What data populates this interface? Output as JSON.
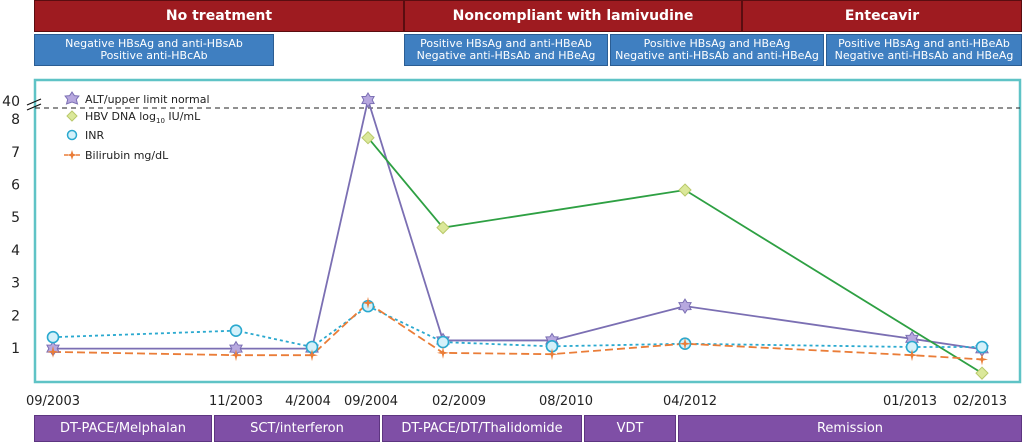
{
  "phases": [
    {
      "label": "No treatment"
    },
    {
      "label": "Noncompliant with lamivudine"
    },
    {
      "label": "Entecavir"
    }
  ],
  "serology": [
    {
      "line1": "Negative HBsAg and anti-HBsAb",
      "line2": "Positive anti-HBcAb"
    },
    {
      "line1": "Positive HBsAg and anti-HBeAb",
      "line2": "Negative anti-HBsAb and HBeAg"
    },
    {
      "line1": "Positive HBsAg and HBeAg",
      "line2": "Negative anti-HBsAb and anti-HBeAg"
    },
    {
      "line1": "Positive HBsAg and anti-HBeAb",
      "line2": "Negative anti-HBsAb and HBeAg"
    }
  ],
  "treatments": [
    {
      "label": "DT-PACE/Melphalan"
    },
    {
      "label": "SCT/interferon"
    },
    {
      "label": "DT-PACE/DT/Thalidomide"
    },
    {
      "label": "VDT"
    },
    {
      "label": "Remission"
    }
  ],
  "chart_data": {
    "type": "line",
    "x_dates": [
      "09/2003",
      "11/2003",
      "4/2004",
      "09/2004",
      "02/2009",
      "08/2010",
      "04/2012",
      "01/2013",
      "02/2013"
    ],
    "y_ticks": [
      "1",
      "2",
      "3",
      "4",
      "5",
      "6",
      "7",
      "8",
      "40"
    ],
    "y_axis_break": true,
    "legend_position": "top-left",
    "legend_entries": {
      "alt_prefix": "ALT/upper limit normal",
      "hbv_prefix": "HBV DNA log",
      "hbv_sub": "10",
      "hbv_suffix": " IU/mL",
      "inr": "INR",
      "bili": "Bilirubin mg/dL"
    },
    "colors": {
      "alt": "#7b6fb3",
      "hbv": "#2ea043",
      "inr": "#2aa9cf",
      "bili": "#ea7d38",
      "frame": "#5fc3c6",
      "phase_band": "#9e1b20",
      "serology_band": "#3f7fc1",
      "treatment_band": "#7f4fa6"
    },
    "series": [
      {
        "key": "alt",
        "points": [
          {
            "x": "09/2003",
            "y": 0.95
          },
          {
            "x": "11/2003",
            "y": 0.95
          },
          {
            "x": "4/2004",
            "y": 0.95
          },
          {
            "x": "09/2004",
            "y": 40
          },
          {
            "x": "02/2009",
            "y": 1.2
          },
          {
            "x": "08/2010",
            "y": 1.2
          },
          {
            "x": "04/2012",
            "y": 2.25
          },
          {
            "x": "01/2013",
            "y": 1.25
          },
          {
            "x": "02/2013",
            "y": 0.93
          }
        ]
      },
      {
        "key": "hbv",
        "points": [
          {
            "x": "09/2004",
            "y": 7.4
          },
          {
            "x": "02/2009",
            "y": 4.65
          },
          {
            "x": "04/2012",
            "y": 5.8
          },
          {
            "x": "02/2013",
            "y": 0.2
          }
        ]
      },
      {
        "key": "inr",
        "points": [
          {
            "x": "09/2003",
            "y": 1.3
          },
          {
            "x": "11/2003",
            "y": 1.5
          },
          {
            "x": "4/2004",
            "y": 1.0
          },
          {
            "x": "09/2004",
            "y": 2.25
          },
          {
            "x": "02/2009",
            "y": 1.15
          },
          {
            "x": "08/2010",
            "y": 1.02
          },
          {
            "x": "04/2012",
            "y": 1.1
          },
          {
            "x": "01/2013",
            "y": 1.0
          },
          {
            "x": "02/2013",
            "y": 1.0
          }
        ]
      },
      {
        "key": "bili",
        "points": [
          {
            "x": "09/2003",
            "y": 0.85
          },
          {
            "x": "11/2003",
            "y": 0.75
          },
          {
            "x": "4/2004",
            "y": 0.75
          },
          {
            "x": "09/2004",
            "y": 2.35
          },
          {
            "x": "02/2009",
            "y": 0.82
          },
          {
            "x": "08/2010",
            "y": 0.78
          },
          {
            "x": "04/2012",
            "y": 1.1
          },
          {
            "x": "01/2013",
            "y": 0.75
          },
          {
            "x": "02/2013",
            "y": 0.62
          }
        ]
      }
    ]
  }
}
